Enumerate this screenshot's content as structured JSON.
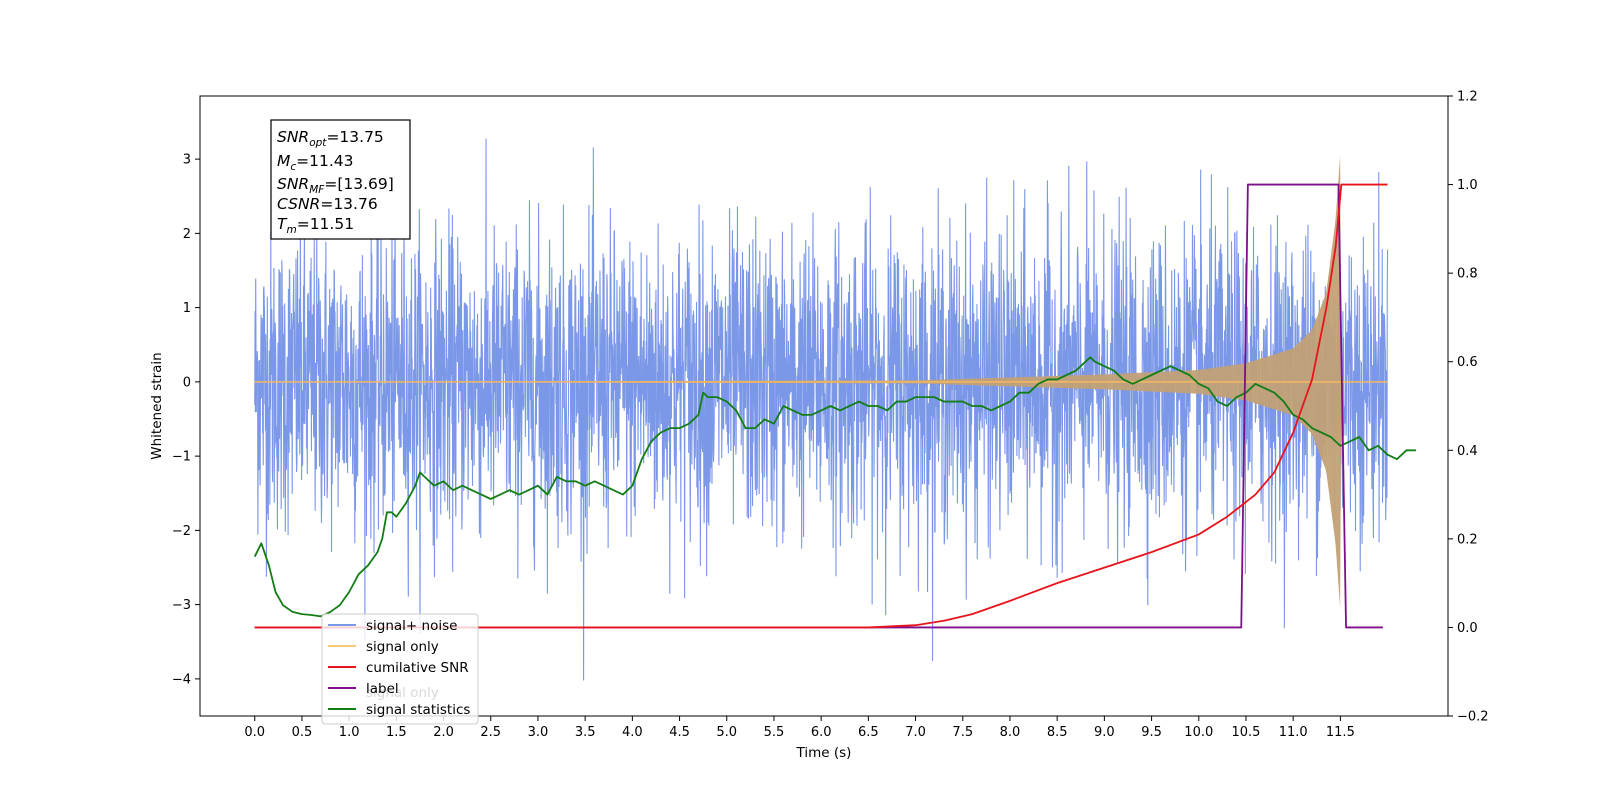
{
  "chart_data": {
    "type": "line",
    "xlabel": "Time (s)",
    "ylabel": "Whitened strain",
    "y2label": "",
    "xlim": [
      -0.58,
      12.64
    ],
    "ylim": [
      -4.5,
      3.85
    ],
    "y2lim": [
      -0.2,
      1.2
    ],
    "xticks": [
      0.0,
      0.5,
      1.0,
      1.5,
      2.0,
      2.5,
      3.0,
      3.5,
      4.0,
      4.5,
      5.0,
      5.5,
      6.0,
      6.5,
      7.0,
      7.5,
      8.0,
      8.5,
      9.0,
      9.5,
      10.0,
      10.5,
      11.0,
      11.5
    ],
    "xtick_labels": [
      "0.0",
      "0.5",
      "1.0",
      "1.5",
      "2.0",
      "2.5",
      "3.0",
      "3.5",
      "4.0",
      "4.5",
      "5.0",
      "5.5",
      "6.0",
      "6.5",
      "7.0",
      "7.5",
      "8.0",
      "8.5",
      "9.0",
      "9.5",
      "10.0",
      "10.5",
      "11.0",
      "11.5"
    ],
    "yticks": [
      -4,
      -3,
      -2,
      -1,
      0,
      1,
      2,
      3
    ],
    "ytick_labels": [
      "−4",
      "−3",
      "−2",
      "−1",
      "0",
      "1",
      "2",
      "3"
    ],
    "y2ticks": [
      -0.2,
      0.0,
      0.2,
      0.4,
      0.6,
      0.8,
      1.0,
      1.2
    ],
    "y2tick_labels": [
      "−0.2",
      "0.0",
      "0.2",
      "0.4",
      "0.6",
      "0.8",
      "1.0",
      "1.2"
    ],
    "grid": false,
    "legend_position": "lower-left",
    "legend": [
      "signal+ noise",
      "signal only",
      "cumilative SNR",
      "label",
      "signal statistics"
    ],
    "legend_overlapped_text": "signal only",
    "info_box": [
      {
        "base": "SNR",
        "sub": "opt",
        "value": "=13.75"
      },
      {
        "base": "M",
        "sub": "c",
        "value": "=11.43"
      },
      {
        "base": "SNR",
        "sub": "MF",
        "value": "=[13.69]"
      },
      {
        "base": "CSNR",
        "sub": "",
        "value": "=13.76"
      },
      {
        "base": "T",
        "sub": "m",
        "value": "=11.51"
      }
    ],
    "series": [
      {
        "name": "signal+ noise",
        "axis": "left",
        "color": "#7b97e8",
        "t_start": 0.0,
        "t_end": 12.0,
        "typical_range": [
          -2.0,
          2.0
        ],
        "max": 3.5,
        "min": -4.1
      },
      {
        "name": "signal only",
        "axis": "left",
        "color": "#f5b862",
        "t_start": 0.0,
        "t_end": 12.0,
        "merger_time": 11.51,
        "envelope": [
          [
            7.0,
            0.02
          ],
          [
            8.0,
            0.06
          ],
          [
            9.0,
            0.1
          ],
          [
            10.0,
            0.16
          ],
          [
            10.5,
            0.25
          ],
          [
            11.0,
            0.45
          ],
          [
            11.2,
            0.7
          ],
          [
            11.35,
            1.2
          ],
          [
            11.45,
            2.2
          ],
          [
            11.5,
            3.1
          ]
        ]
      },
      {
        "name": "cumilative SNR",
        "axis": "right",
        "color": "#e8141c",
        "points": [
          [
            0.0,
            0.0
          ],
          [
            6.5,
            0.0
          ],
          [
            7.0,
            0.005
          ],
          [
            7.3,
            0.015
          ],
          [
            7.6,
            0.03
          ],
          [
            8.0,
            0.06
          ],
          [
            8.5,
            0.1
          ],
          [
            9.0,
            0.135
          ],
          [
            9.5,
            0.17
          ],
          [
            10.0,
            0.21
          ],
          [
            10.3,
            0.25
          ],
          [
            10.6,
            0.3
          ],
          [
            10.8,
            0.35
          ],
          [
            11.0,
            0.44
          ],
          [
            11.2,
            0.56
          ],
          [
            11.35,
            0.72
          ],
          [
            11.45,
            0.86
          ],
          [
            11.51,
            1.0
          ],
          [
            12.0,
            1.0
          ]
        ]
      },
      {
        "name": "label",
        "axis": "right",
        "color": "#7d0f8a",
        "points": [
          [
            0.0,
            0.0
          ],
          [
            10.45,
            0.0
          ],
          [
            10.52,
            1.0
          ],
          [
            11.48,
            1.0
          ],
          [
            11.56,
            0.0
          ],
          [
            11.95,
            0.0
          ]
        ]
      },
      {
        "name": "signal statistics",
        "axis": "right",
        "color": "#137d16",
        "points": [
          [
            0.0,
            0.16
          ],
          [
            0.07,
            0.19
          ],
          [
            0.15,
            0.14
          ],
          [
            0.22,
            0.08
          ],
          [
            0.3,
            0.05
          ],
          [
            0.4,
            0.035
          ],
          [
            0.5,
            0.03
          ],
          [
            0.6,
            0.028
          ],
          [
            0.7,
            0.025
          ],
          [
            0.8,
            0.035
          ],
          [
            0.9,
            0.05
          ],
          [
            1.0,
            0.08
          ],
          [
            1.1,
            0.12
          ],
          [
            1.2,
            0.14
          ],
          [
            1.3,
            0.17
          ],
          [
            1.35,
            0.2
          ],
          [
            1.4,
            0.26
          ],
          [
            1.45,
            0.26
          ],
          [
            1.5,
            0.25
          ],
          [
            1.6,
            0.28
          ],
          [
            1.7,
            0.32
          ],
          [
            1.75,
            0.35
          ],
          [
            1.8,
            0.34
          ],
          [
            1.85,
            0.33
          ],
          [
            1.9,
            0.32
          ],
          [
            2.0,
            0.33
          ],
          [
            2.1,
            0.31
          ],
          [
            2.2,
            0.32
          ],
          [
            2.3,
            0.31
          ],
          [
            2.4,
            0.3
          ],
          [
            2.5,
            0.29
          ],
          [
            2.6,
            0.3
          ],
          [
            2.7,
            0.31
          ],
          [
            2.8,
            0.3
          ],
          [
            2.9,
            0.31
          ],
          [
            3.0,
            0.32
          ],
          [
            3.1,
            0.3
          ],
          [
            3.2,
            0.34
          ],
          [
            3.3,
            0.33
          ],
          [
            3.4,
            0.33
          ],
          [
            3.5,
            0.32
          ],
          [
            3.6,
            0.33
          ],
          [
            3.7,
            0.32
          ],
          [
            3.8,
            0.31
          ],
          [
            3.9,
            0.3
          ],
          [
            4.0,
            0.32
          ],
          [
            4.1,
            0.38
          ],
          [
            4.2,
            0.42
          ],
          [
            4.3,
            0.44
          ],
          [
            4.4,
            0.45
          ],
          [
            4.5,
            0.45
          ],
          [
            4.6,
            0.46
          ],
          [
            4.7,
            0.48
          ],
          [
            4.75,
            0.53
          ],
          [
            4.8,
            0.52
          ],
          [
            4.9,
            0.52
          ],
          [
            5.0,
            0.51
          ],
          [
            5.1,
            0.49
          ],
          [
            5.2,
            0.45
          ],
          [
            5.3,
            0.45
          ],
          [
            5.4,
            0.47
          ],
          [
            5.5,
            0.46
          ],
          [
            5.6,
            0.5
          ],
          [
            5.7,
            0.49
          ],
          [
            5.8,
            0.48
          ],
          [
            5.9,
            0.48
          ],
          [
            6.0,
            0.49
          ],
          [
            6.1,
            0.5
          ],
          [
            6.2,
            0.49
          ],
          [
            6.3,
            0.5
          ],
          [
            6.4,
            0.51
          ],
          [
            6.5,
            0.5
          ],
          [
            6.6,
            0.5
          ],
          [
            6.7,
            0.49
          ],
          [
            6.8,
            0.51
          ],
          [
            6.9,
            0.51
          ],
          [
            7.0,
            0.52
          ],
          [
            7.1,
            0.52
          ],
          [
            7.2,
            0.52
          ],
          [
            7.3,
            0.51
          ],
          [
            7.4,
            0.51
          ],
          [
            7.5,
            0.51
          ],
          [
            7.6,
            0.5
          ],
          [
            7.7,
            0.5
          ],
          [
            7.8,
            0.49
          ],
          [
            7.9,
            0.5
          ],
          [
            8.0,
            0.51
          ],
          [
            8.1,
            0.53
          ],
          [
            8.2,
            0.53
          ],
          [
            8.3,
            0.55
          ],
          [
            8.4,
            0.56
          ],
          [
            8.5,
            0.56
          ],
          [
            8.6,
            0.57
          ],
          [
            8.7,
            0.58
          ],
          [
            8.8,
            0.6
          ],
          [
            8.85,
            0.61
          ],
          [
            8.9,
            0.6
          ],
          [
            9.0,
            0.59
          ],
          [
            9.1,
            0.58
          ],
          [
            9.2,
            0.56
          ],
          [
            9.3,
            0.55
          ],
          [
            9.4,
            0.56
          ],
          [
            9.5,
            0.57
          ],
          [
            9.6,
            0.58
          ],
          [
            9.7,
            0.59
          ],
          [
            9.8,
            0.58
          ],
          [
            9.9,
            0.57
          ],
          [
            10.0,
            0.55
          ],
          [
            10.1,
            0.54
          ],
          [
            10.2,
            0.51
          ],
          [
            10.3,
            0.5
          ],
          [
            10.4,
            0.52
          ],
          [
            10.5,
            0.53
          ],
          [
            10.6,
            0.55
          ],
          [
            10.7,
            0.54
          ],
          [
            10.8,
            0.53
          ],
          [
            10.9,
            0.51
          ],
          [
            11.0,
            0.48
          ],
          [
            11.1,
            0.47
          ],
          [
            11.15,
            0.46
          ],
          [
            11.2,
            0.45
          ],
          [
            11.3,
            0.44
          ],
          [
            11.4,
            0.43
          ],
          [
            11.5,
            0.41
          ],
          [
            11.6,
            0.42
          ],
          [
            11.7,
            0.43
          ],
          [
            11.8,
            0.4
          ],
          [
            11.9,
            0.41
          ],
          [
            12.0,
            0.39
          ],
          [
            12.1,
            0.38
          ],
          [
            12.2,
            0.4
          ],
          [
            12.3,
            0.4
          ]
        ]
      }
    ]
  }
}
